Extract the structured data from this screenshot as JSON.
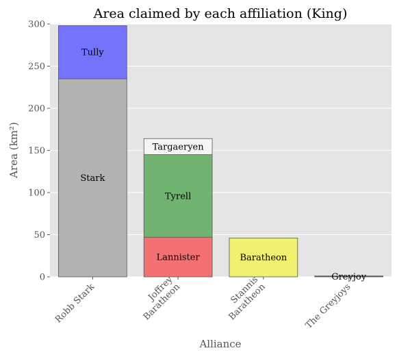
{
  "chart_data": {
    "type": "bar",
    "stacked": true,
    "title": "Area claimed by each affiliation (King)",
    "xlabel": "Alliance",
    "ylabel": "Area (km²)",
    "ylim": [
      0,
      300
    ],
    "yticks": [
      0,
      50,
      100,
      150,
      200,
      250,
      300
    ],
    "grid": true,
    "categories": [
      {
        "label": [
          "Robb Stark"
        ]
      },
      {
        "label": [
          "Joffrey",
          "Baratheon"
        ]
      },
      {
        "label": [
          "Stannis",
          "Baratheon"
        ]
      },
      {
        "label": [
          "The Greyjoys"
        ]
      }
    ],
    "stacks": [
      [
        {
          "name": "Stark",
          "value": 235,
          "color": "#b2b2b2"
        },
        {
          "name": "Tully",
          "value": 63,
          "color": "#7373fb"
        }
      ],
      [
        {
          "name": "Lannister",
          "value": 47,
          "color": "#f47171"
        },
        {
          "name": "Tyrell",
          "value": 98,
          "color": "#71b371"
        },
        {
          "name": "Targaeryen",
          "value": 19,
          "color": "#f5f5f5"
        }
      ],
      [
        {
          "name": "Baratheon",
          "value": 46,
          "color": "#f1f171"
        }
      ],
      [
        {
          "name": "Greyjoy",
          "value": 1,
          "color": "#555555"
        }
      ]
    ]
  }
}
